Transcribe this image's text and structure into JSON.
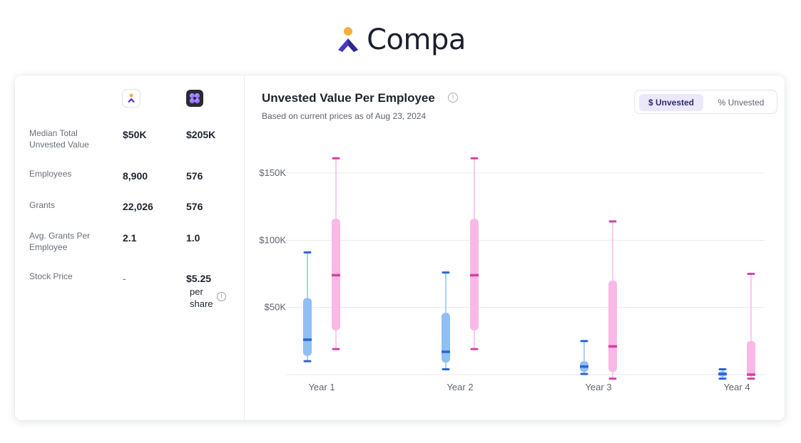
{
  "brand": {
    "name": "Compa"
  },
  "table": {
    "rows": [
      {
        "label": "Median Total Unvested Value",
        "a": "$50K",
        "b": "$205K"
      },
      {
        "label": "Employees",
        "a": "8,900",
        "b": "576"
      },
      {
        "label": "Grants",
        "a": "22,026",
        "b": "576"
      },
      {
        "label": "Avg. Grants Per Employee",
        "a": "2.1",
        "b": "1.0"
      },
      {
        "label": "Stock Price",
        "a": "-",
        "b": "$5.25",
        "b_sub": "per share"
      }
    ]
  },
  "chart_header": {
    "title": "Unvested Value Per Employee",
    "subtitle": "Based on current prices as of Aug 23, 2024"
  },
  "toggle": {
    "options": [
      "$ Unvested",
      "% Unvested"
    ],
    "selected": "$ Unvested"
  },
  "colors": {
    "series_a_box": "#90bff5",
    "series_a_mark": "#2b63d9",
    "series_b_box": "#f9b8e6",
    "series_b_mark": "#d63fa6",
    "grid": "#e9eaee"
  },
  "chart_data": {
    "type": "boxplot",
    "categories": [
      "Year 1",
      "Year 2",
      "Year 3",
      "Year 4"
    ],
    "y_ticks": [
      {
        "value": 50000,
        "label": "$50K"
      },
      {
        "value": 100000,
        "label": "$100K"
      },
      {
        "value": 150000,
        "label": "$150K"
      }
    ],
    "ylim": [
      0,
      170000
    ],
    "grid": true,
    "series": [
      {
        "boxes": [
          {
            "min": 10000,
            "q1": 14000,
            "median": 26000,
            "q3": 57000,
            "max": 91000
          },
          {
            "min": 4000,
            "q1": 9000,
            "median": 17000,
            "q3": 46000,
            "max": 76000
          },
          {
            "min": 500,
            "q1": 2000,
            "median": 6000,
            "q3": 10000,
            "max": 25000
          },
          {
            "min": -3000,
            "q1": -1500,
            "median": 500,
            "q3": 2500,
            "max": 4000
          }
        ]
      },
      {
        "boxes": [
          {
            "min": 19000,
            "q1": 33000,
            "median": 74000,
            "q3": 116000,
            "max": 161000
          },
          {
            "min": 19000,
            "q1": 33000,
            "median": 74000,
            "q3": 116000,
            "max": 161000
          },
          {
            "min": -3000,
            "q1": 2000,
            "median": 21000,
            "q3": 70000,
            "max": 114000
          },
          {
            "min": -3000,
            "q1": -1000,
            "median": 0,
            "q3": 25000,
            "max": 75000
          }
        ]
      }
    ]
  }
}
